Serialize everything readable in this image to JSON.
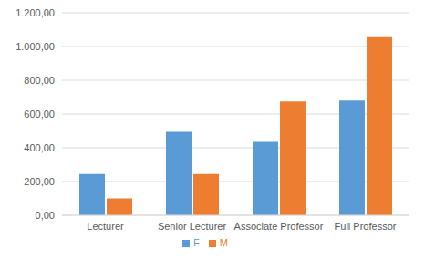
{
  "chart_data": {
    "type": "bar",
    "categories": [
      "Lecturer",
      "Senior Lecturer",
      "Associate Professor",
      "Full Professor"
    ],
    "series": [
      {
        "name": "F",
        "color": "#5b9bd5",
        "values": [
          245,
          495,
          435,
          680
        ]
      },
      {
        "name": "M",
        "color": "#ed7d31",
        "values": [
          100,
          245,
          675,
          1055
        ]
      }
    ],
    "ylim": [
      0,
      1200
    ],
    "yticks": [
      {
        "value": 0,
        "label": "0,00"
      },
      {
        "value": 200,
        "label": "200,00"
      },
      {
        "value": 400,
        "label": "400,00"
      },
      {
        "value": 600,
        "label": "600,00"
      },
      {
        "value": 800,
        "label": "800,00"
      },
      {
        "value": 1000,
        "label": "1.000,00"
      },
      {
        "value": 1200,
        "label": "1.200,00"
      }
    ],
    "grid": true,
    "legend": "bottom"
  }
}
